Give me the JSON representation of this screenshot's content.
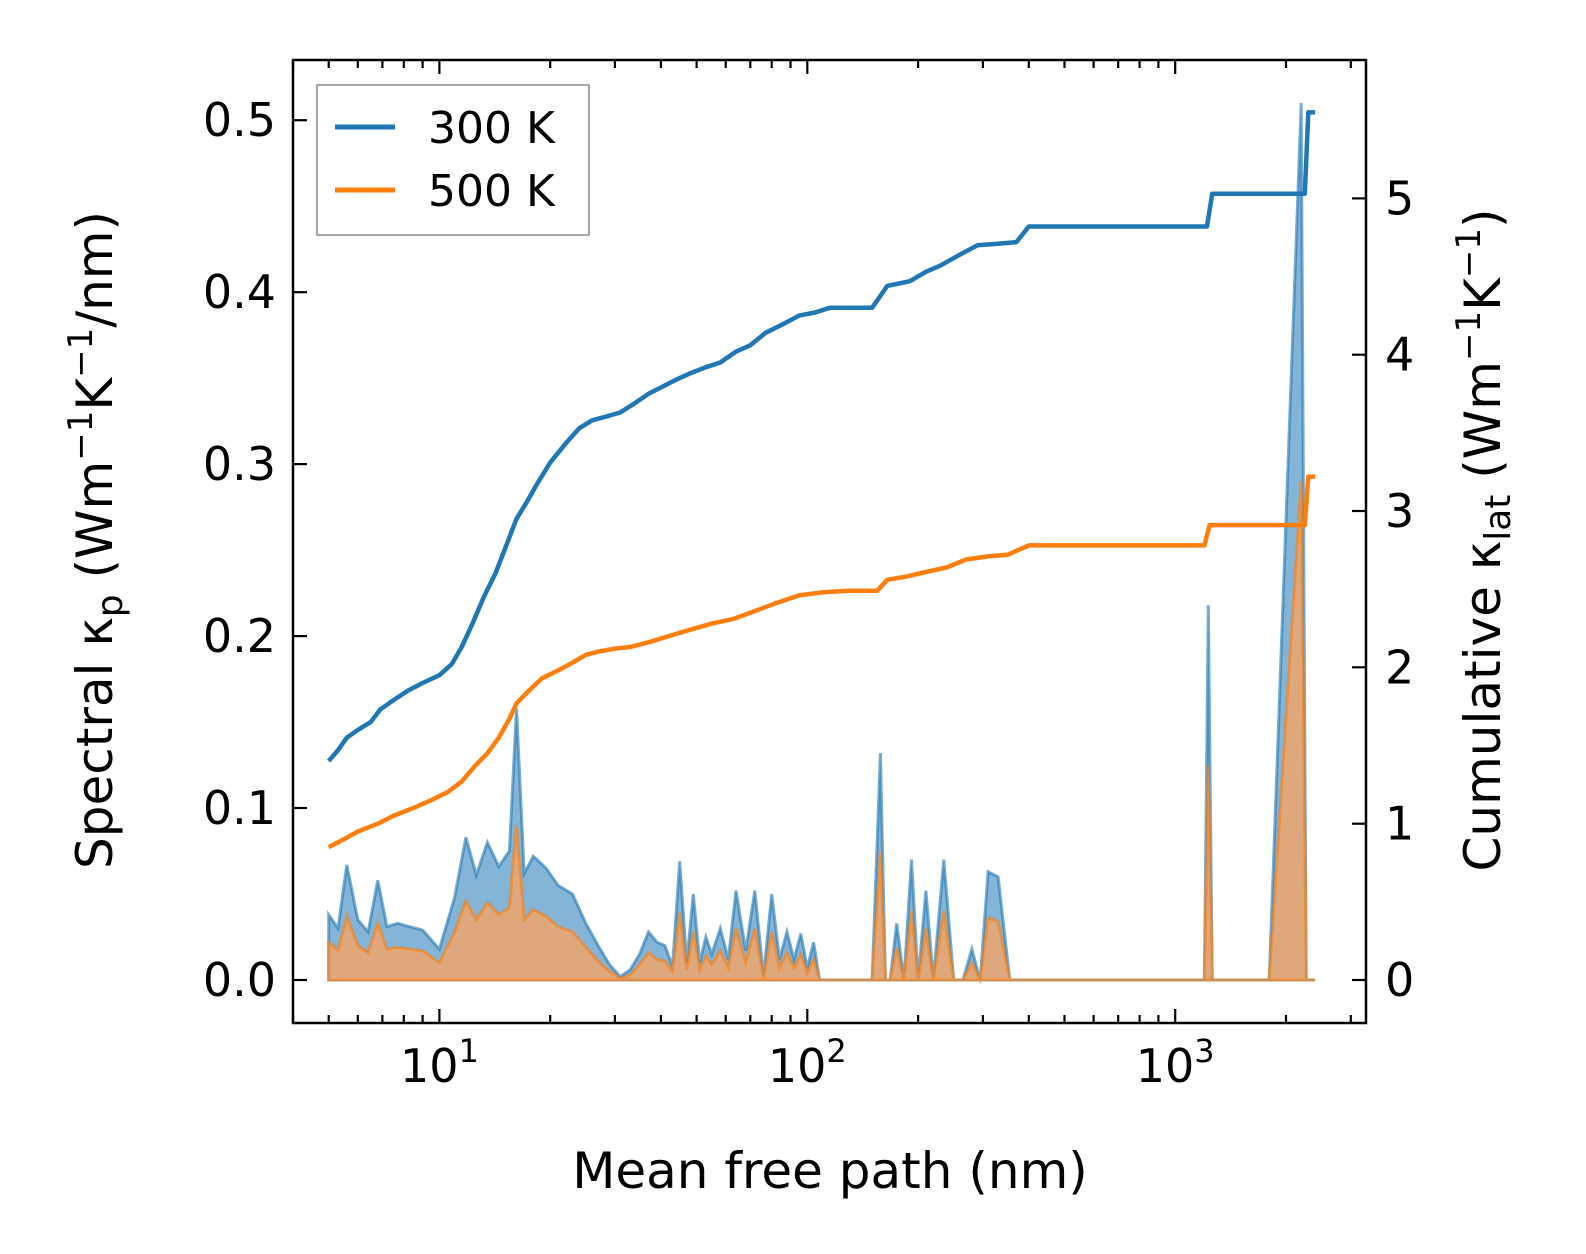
{
  "chart_data": {
    "type": "line",
    "xlabel": "Mean free path (nm)",
    "ylabel_left": {
      "base": "Spectral κ",
      "sub": "p",
      "units_prefix": " (Wm",
      "exp1": "−1",
      "mid": "K",
      "exp2": "−1",
      "suffix": "/nm)"
    },
    "ylabel_right": {
      "base": "Cumulative κ",
      "sub": "lat",
      "units_prefix": " (Wm",
      "exp1": "−1",
      "mid": "K",
      "exp2": "−1",
      "suffix": ")"
    },
    "xscale": "log",
    "xlim": [
      4,
      3300
    ],
    "ylim_left": [
      -0.025,
      0.535
    ],
    "ylim_right": [
      -0.275,
      5.885
    ],
    "xticks": [
      {
        "base": "10",
        "exp": "1",
        "value": 10
      },
      {
        "base": "10",
        "exp": "2",
        "value": 100
      },
      {
        "base": "10",
        "exp": "3",
        "value": 1000
      }
    ],
    "yticks_left": [
      "0.0",
      "0.1",
      "0.2",
      "0.3",
      "0.4",
      "0.5"
    ],
    "yticks_right": [
      "0",
      "1",
      "2",
      "3",
      "4",
      "5"
    ],
    "legend": {
      "position": "top-left",
      "entries": [
        "300 K",
        "500 K"
      ]
    },
    "colors": {
      "s300": "#1f77b4",
      "s500": "#ff7f0e",
      "fill300": "#1f77b4",
      "fill500": "#e3a877"
    },
    "series": [
      {
        "name": "300 K",
        "axis": "right",
        "x": [
          5,
          5.3,
          5.6,
          6.0,
          6.5,
          6.9,
          7.5,
          8.2,
          9.0,
          10,
          10.8,
          11.5,
          12.3,
          13.2,
          14.2,
          15.2,
          16.2,
          17.2,
          18.5,
          20,
          22,
          24,
          26,
          28,
          31,
          34,
          37,
          40,
          44,
          48,
          53,
          58,
          64,
          70,
          77,
          85,
          95,
          105,
          115,
          130,
          150,
          165,
          190,
          210,
          230,
          260,
          290,
          330,
          370,
          400,
          600,
          900,
          1220,
          1260,
          1800,
          2250,
          2300,
          2400
        ],
        "values": [
          1.4,
          1.47,
          1.55,
          1.6,
          1.65,
          1.73,
          1.79,
          1.85,
          1.9,
          1.95,
          2.02,
          2.13,
          2.28,
          2.45,
          2.6,
          2.78,
          2.95,
          3.05,
          3.18,
          3.31,
          3.43,
          3.53,
          3.58,
          3.6,
          3.63,
          3.69,
          3.75,
          3.79,
          3.84,
          3.88,
          3.92,
          3.95,
          4.02,
          4.06,
          4.14,
          4.19,
          4.25,
          4.27,
          4.3,
          4.3,
          4.3,
          4.44,
          4.47,
          4.53,
          4.57,
          4.64,
          4.7,
          4.71,
          4.72,
          4.82,
          4.82,
          4.82,
          4.82,
          5.03,
          5.03,
          5.03,
          5.55,
          5.55
        ]
      },
      {
        "name": "500 K",
        "axis": "right",
        "x": [
          5,
          5.5,
          6.0,
          6.8,
          7.5,
          8.5,
          9.5,
          10.5,
          11.5,
          12.5,
          13.5,
          14.5,
          15.5,
          16.2,
          17.5,
          19,
          21,
          23,
          25,
          27,
          30,
          33,
          37,
          42,
          48,
          55,
          63,
          72,
          82,
          95,
          110,
          130,
          155,
          165,
          185,
          210,
          240,
          270,
          310,
          350,
          400,
          600,
          900,
          1200,
          1240,
          1800,
          2250,
          2300,
          2400
        ],
        "values": [
          0.85,
          0.9,
          0.95,
          1.0,
          1.05,
          1.1,
          1.15,
          1.2,
          1.27,
          1.37,
          1.45,
          1.55,
          1.67,
          1.77,
          1.85,
          1.93,
          1.98,
          2.03,
          2.08,
          2.1,
          2.12,
          2.13,
          2.16,
          2.2,
          2.24,
          2.28,
          2.31,
          2.36,
          2.41,
          2.46,
          2.48,
          2.49,
          2.49,
          2.56,
          2.58,
          2.61,
          2.64,
          2.69,
          2.71,
          2.72,
          2.78,
          2.78,
          2.78,
          2.78,
          2.91,
          2.91,
          2.91,
          3.22,
          3.22
        ]
      },
      {
        "name": "Spectral 300 K",
        "axis": "left",
        "x": [
          5,
          5.3,
          5.6,
          6.0,
          6.4,
          6.8,
          7.2,
          7.7,
          8.3,
          9,
          10,
          11,
          11.8,
          12.6,
          13.5,
          14.5,
          15.5,
          16.2,
          17,
          18,
          19.5,
          21,
          23,
          25,
          27,
          29,
          31,
          33,
          35,
          37,
          39,
          41,
          43,
          45,
          47,
          49,
          51,
          53,
          55,
          58,
          61,
          64,
          68,
          72,
          76,
          80,
          84,
          88,
          92,
          96,
          100,
          104,
          108,
          115,
          120,
          125,
          130,
          140,
          150,
          158,
          163,
          168,
          175,
          183,
          192,
          200,
          210,
          220,
          235,
          250,
          265,
          280,
          295,
          310,
          330,
          355,
          375,
          390,
          410,
          600,
          900,
          1200,
          1230,
          1260,
          1300,
          1800,
          2200,
          2270,
          2300,
          2340,
          2400
        ],
        "values": [
          0.038,
          0.03,
          0.067,
          0.035,
          0.028,
          0.058,
          0.031,
          0.033,
          0.031,
          0.029,
          0.018,
          0.048,
          0.083,
          0.061,
          0.08,
          0.066,
          0.075,
          0.158,
          0.062,
          0.072,
          0.065,
          0.055,
          0.05,
          0.033,
          0.02,
          0.009,
          0.002,
          0.006,
          0.015,
          0.028,
          0.022,
          0.02,
          0.008,
          0.069,
          0.01,
          0.05,
          0.01,
          0.025,
          0.015,
          0.03,
          0.012,
          0.052,
          0.017,
          0.052,
          0.002,
          0.05,
          0.012,
          0.028,
          0.012,
          0.027,
          0.007,
          0.022,
          0.0,
          0.0,
          0.0,
          0.0,
          0.0,
          0.0,
          0.0,
          0.132,
          0.0,
          0.0,
          0.033,
          0.0,
          0.07,
          0.0,
          0.052,
          0.0,
          0.07,
          0.0,
          0.0,
          0.018,
          0.0,
          0.063,
          0.06,
          0.0,
          0.0,
          0.0,
          0.0,
          0.0,
          0.0,
          0.0,
          0.218,
          0.0,
          0.0,
          0.0,
          0.51,
          0.0,
          0.0,
          0.0,
          0.0
        ]
      },
      {
        "name": "Spectral 500 K",
        "axis": "left",
        "x": [
          5,
          5.3,
          5.6,
          6.0,
          6.4,
          6.8,
          7.2,
          7.7,
          8.3,
          9,
          10,
          11,
          11.8,
          12.6,
          13.5,
          14.5,
          15.5,
          16.2,
          17,
          18,
          19.5,
          21,
          23,
          25,
          27,
          29,
          31,
          33,
          35,
          37,
          39,
          41,
          43,
          45,
          47,
          49,
          51,
          53,
          55,
          58,
          61,
          64,
          68,
          72,
          76,
          80,
          84,
          88,
          92,
          96,
          100,
          104,
          108,
          115,
          120,
          125,
          130,
          140,
          150,
          158,
          163,
          168,
          175,
          183,
          192,
          200,
          210,
          220,
          235,
          250,
          265,
          280,
          295,
          310,
          330,
          355,
          375,
          390,
          410,
          600,
          900,
          1200,
          1230,
          1260,
          1300,
          1800,
          2200,
          2270,
          2300,
          2340,
          2400
        ],
        "values": [
          0.022,
          0.017,
          0.037,
          0.02,
          0.016,
          0.033,
          0.018,
          0.019,
          0.018,
          0.017,
          0.01,
          0.028,
          0.046,
          0.035,
          0.045,
          0.038,
          0.042,
          0.09,
          0.035,
          0.041,
          0.037,
          0.031,
          0.028,
          0.019,
          0.011,
          0.005,
          0.001,
          0.003,
          0.009,
          0.016,
          0.012,
          0.011,
          0.005,
          0.039,
          0.006,
          0.028,
          0.006,
          0.014,
          0.009,
          0.017,
          0.007,
          0.03,
          0.01,
          0.03,
          0.001,
          0.028,
          0.007,
          0.016,
          0.007,
          0.015,
          0.004,
          0.012,
          0.0,
          0.0,
          0.0,
          0.0,
          0.0,
          0.0,
          0.0,
          0.075,
          0.0,
          0.0,
          0.019,
          0.0,
          0.04,
          0.0,
          0.03,
          0.0,
          0.04,
          0.0,
          0.0,
          0.01,
          0.0,
          0.036,
          0.034,
          0.0,
          0.0,
          0.0,
          0.0,
          0.0,
          0.0,
          0.0,
          0.125,
          0.0,
          0.0,
          0.0,
          0.29,
          0.0,
          0.0,
          0.0,
          0.0
        ]
      }
    ]
  }
}
